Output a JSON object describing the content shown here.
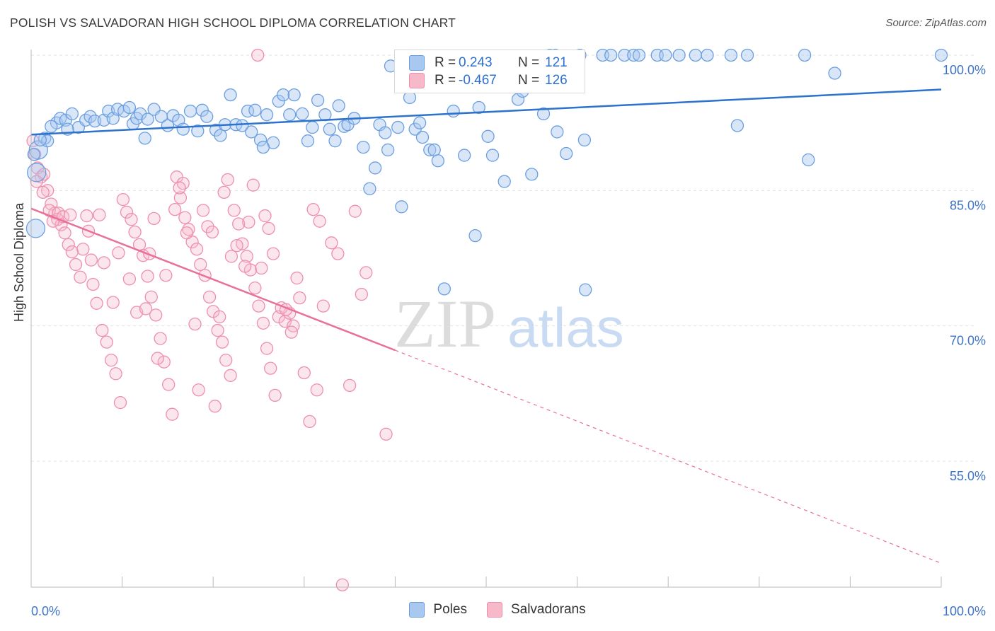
{
  "header": {
    "title": "POLISH VS SALVADORAN HIGH SCHOOL DIPLOMA CORRELATION CHART",
    "source": "Source: ZipAtlas.com"
  },
  "watermark": {
    "zip": "ZIP",
    "atlas": "atlas"
  },
  "colors": {
    "poles_fill": "#a9c8f0",
    "poles_stroke": "#6b9fe0",
    "poles_line": "#2d72cc",
    "salv_fill": "#f7b8ca",
    "salv_stroke": "#ee8fae",
    "salv_line": "#e8709a",
    "tick_label": "#3f74c8",
    "grid": "#e3e3e3"
  },
  "legend_box": {
    "rows": [
      {
        "r_label": "R =",
        "r_value": "0.243",
        "n_label": "N =",
        "n_value": "121",
        "swatch": "poles"
      },
      {
        "r_label": "R =",
        "r_value": "-0.467",
        "n_label": "N =",
        "n_value": "126",
        "swatch": "salvadorans"
      }
    ]
  },
  "bottom_legend": [
    {
      "label": "Poles",
      "swatch": "poles"
    },
    {
      "label": "Salvadorans",
      "swatch": "salvadorans"
    }
  ],
  "chart_data": {
    "type": "scatter",
    "title": "POLISH VS SALVADORAN HIGH SCHOOL DIPLOMA CORRELATION CHART",
    "xlabel": "",
    "ylabel": "High School Diploma",
    "xlim": [
      0,
      100
    ],
    "ylim": [
      38,
      100
    ],
    "x_tick_labels": [
      "0.0%",
      "100.0%"
    ],
    "y_ticks": [
      55,
      70,
      85,
      100
    ],
    "y_tick_labels": [
      "55.0%",
      "70.0%",
      "85.0%",
      "100.0%"
    ],
    "grid": true,
    "legend_position": "top-center",
    "series": [
      {
        "name": "Poles",
        "r": 0.243,
        "n": 121,
        "trend": {
          "x": [
            0,
            100
          ],
          "y": [
            91.2,
            96.2
          ]
        },
        "points": [
          [
            0.5,
            80.8
          ],
          [
            0.8,
            89.5
          ],
          [
            0.6,
            87.0
          ],
          [
            1.5,
            90.8
          ],
          [
            1.8,
            90.5
          ],
          [
            2.8,
            92.5
          ],
          [
            3.2,
            93.0
          ],
          [
            3.8,
            92.8
          ],
          [
            4.5,
            93.5
          ],
          [
            5.2,
            92.0
          ],
          [
            6.0,
            92.8
          ],
          [
            6.5,
            93.2
          ],
          [
            7.0,
            92.7
          ],
          [
            8.0,
            92.8
          ],
          [
            8.5,
            93.8
          ],
          [
            9.0,
            93.0
          ],
          [
            9.5,
            94.0
          ],
          [
            10.2,
            93.8
          ],
          [
            10.8,
            94.2
          ],
          [
            11.2,
            92.4
          ],
          [
            11.6,
            93.0
          ],
          [
            12.0,
            93.5
          ],
          [
            12.8,
            92.9
          ],
          [
            13.5,
            94.0
          ],
          [
            14.3,
            93.2
          ],
          [
            15.0,
            92.2
          ],
          [
            15.6,
            93.3
          ],
          [
            16.2,
            92.8
          ],
          [
            16.7,
            91.8
          ],
          [
            17.5,
            93.8
          ],
          [
            18.3,
            91.6
          ],
          [
            18.8,
            93.9
          ],
          [
            19.3,
            93.2
          ],
          [
            20.3,
            91.7
          ],
          [
            20.8,
            91.1
          ],
          [
            21.3,
            92.3
          ],
          [
            21.9,
            95.6
          ],
          [
            22.5,
            92.3
          ],
          [
            23.2,
            92.2
          ],
          [
            23.8,
            93.8
          ],
          [
            24.2,
            91.5
          ],
          [
            24.6,
            93.9
          ],
          [
            25.2,
            90.6
          ],
          [
            25.9,
            93.4
          ],
          [
            26.6,
            90.3
          ],
          [
            27.2,
            94.9
          ],
          [
            27.7,
            95.6
          ],
          [
            28.4,
            93.4
          ],
          [
            28.9,
            95.6
          ],
          [
            29.8,
            93.5
          ],
          [
            30.4,
            90.5
          ],
          [
            30.9,
            92.0
          ],
          [
            31.5,
            95.0
          ],
          [
            32.3,
            93.4
          ],
          [
            32.8,
            91.8
          ],
          [
            33.4,
            90.5
          ],
          [
            33.8,
            94.4
          ],
          [
            34.4,
            92.1
          ],
          [
            34.8,
            92.3
          ],
          [
            35.5,
            93.0
          ],
          [
            36.5,
            89.8
          ],
          [
            37.2,
            85.2
          ],
          [
            37.8,
            87.5
          ],
          [
            38.3,
            92.3
          ],
          [
            39.2,
            89.5
          ],
          [
            39.5,
            98.8
          ],
          [
            40.3,
            92.0
          ],
          [
            40.7,
            83.2
          ],
          [
            41.6,
            95.3
          ],
          [
            42.2,
            91.8
          ],
          [
            42.7,
            92.5
          ],
          [
            43.1,
            98.0
          ],
          [
            43.8,
            89.5
          ],
          [
            44.3,
            89.5
          ],
          [
            44.7,
            88.3
          ],
          [
            45.4,
            74.1
          ],
          [
            46.4,
            93.8
          ],
          [
            46.7,
            99.0
          ],
          [
            47.6,
            88.9
          ],
          [
            48.8,
            80.0
          ],
          [
            49.2,
            94.2
          ],
          [
            50.2,
            91.0
          ],
          [
            50.7,
            88.9
          ],
          [
            52.0,
            86.0
          ],
          [
            53.5,
            95.1
          ],
          [
            54.0,
            96.0
          ],
          [
            55.0,
            86.8
          ],
          [
            56.3,
            93.5
          ],
          [
            57.0,
            100.0
          ],
          [
            57.6,
            100.0
          ],
          [
            57.8,
            91.5
          ],
          [
            58.8,
            89.1
          ],
          [
            60.8,
            90.6
          ],
          [
            60.3,
            100.0
          ],
          [
            60.9,
            74.0
          ],
          [
            62.8,
            100.0
          ],
          [
            63.7,
            100.0
          ],
          [
            65.2,
            100.0
          ],
          [
            66.2,
            100.0
          ],
          [
            66.8,
            100.0
          ],
          [
            68.8,
            100.0
          ],
          [
            69.7,
            100.0
          ],
          [
            71.2,
            100.0
          ],
          [
            73.0,
            100.0
          ],
          [
            74.3,
            100.0
          ],
          [
            76.9,
            100.0
          ],
          [
            77.6,
            92.2
          ],
          [
            78.7,
            100.0
          ],
          [
            85.0,
            100.0
          ],
          [
            88.3,
            98.0
          ],
          [
            100.0,
            100.0
          ],
          [
            0.3,
            89.0
          ],
          [
            1.0,
            90.6
          ],
          [
            2.2,
            92.1
          ],
          [
            4.0,
            91.8
          ],
          [
            25.5,
            89.8
          ],
          [
            38.9,
            91.4
          ],
          [
            43.0,
            90.9
          ],
          [
            12.5,
            90.8
          ],
          [
            85.4,
            88.4
          ]
        ]
      },
      {
        "name": "Salvadorans",
        "r": -0.467,
        "n": 126,
        "trend": {
          "x": [
            0,
            40
          ],
          "y": [
            83.0,
            67.3
          ]
        },
        "trend_extension": {
          "x": [
            40,
            100
          ],
          "y": [
            67.3,
            43.7
          ]
        },
        "points": [
          [
            0.2,
            90.5
          ],
          [
            0.4,
            89.0
          ],
          [
            0.7,
            87.5
          ],
          [
            1.1,
            86.5
          ],
          [
            1.4,
            86.8
          ],
          [
            1.8,
            85.0
          ],
          [
            2.2,
            83.5
          ],
          [
            2.6,
            82.5
          ],
          [
            2.9,
            81.8
          ],
          [
            3.3,
            81.2
          ],
          [
            3.7,
            80.3
          ],
          [
            4.1,
            79.0
          ],
          [
            4.5,
            78.2
          ],
          [
            4.9,
            76.8
          ],
          [
            5.4,
            75.4
          ],
          [
            6.1,
            82.2
          ],
          [
            6.3,
            80.5
          ],
          [
            6.8,
            74.6
          ],
          [
            7.2,
            72.5
          ],
          [
            7.8,
            69.5
          ],
          [
            8.3,
            68.2
          ],
          [
            8.8,
            66.2
          ],
          [
            9.3,
            64.7
          ],
          [
            9.8,
            61.5
          ],
          [
            10.1,
            84.0
          ],
          [
            10.5,
            82.6
          ],
          [
            11.0,
            81.8
          ],
          [
            11.4,
            80.4
          ],
          [
            11.9,
            79.0
          ],
          [
            12.3,
            77.8
          ],
          [
            12.8,
            75.5
          ],
          [
            13.2,
            73.2
          ],
          [
            13.7,
            71.2
          ],
          [
            14.2,
            68.6
          ],
          [
            14.6,
            66.0
          ],
          [
            15.1,
            63.5
          ],
          [
            15.5,
            60.2
          ],
          [
            16.0,
            86.5
          ],
          [
            16.4,
            84.2
          ],
          [
            16.9,
            82.0
          ],
          [
            17.3,
            80.7
          ],
          [
            17.7,
            79.3
          ],
          [
            18.2,
            78.5
          ],
          [
            18.6,
            76.8
          ],
          [
            19.1,
            75.6
          ],
          [
            19.6,
            73.2
          ],
          [
            20.0,
            71.6
          ],
          [
            20.5,
            69.5
          ],
          [
            21.0,
            68.2
          ],
          [
            21.4,
            66.2
          ],
          [
            21.9,
            64.5
          ],
          [
            22.3,
            82.8
          ],
          [
            22.8,
            81.3
          ],
          [
            23.2,
            79.1
          ],
          [
            23.7,
            77.7
          ],
          [
            24.1,
            76.2
          ],
          [
            24.6,
            74.2
          ],
          [
            25.0,
            72.2
          ],
          [
            25.5,
            70.3
          ],
          [
            25.9,
            67.5
          ],
          [
            26.3,
            65.3
          ],
          [
            26.8,
            62.3
          ],
          [
            27.2,
            71.0
          ],
          [
            27.9,
            70.5
          ],
          [
            28.4,
            71.4
          ],
          [
            28.8,
            70.0
          ],
          [
            29.5,
            73.1
          ],
          [
            30.6,
            59.4
          ],
          [
            31.4,
            62.9
          ],
          [
            32.1,
            72.2
          ],
          [
            33.0,
            79.2
          ],
          [
            34.2,
            41.3
          ],
          [
            35.0,
            63.4
          ],
          [
            36.3,
            73.5
          ],
          [
            36.8,
            75.9
          ],
          [
            39.0,
            58.0
          ],
          [
            0.6,
            86.0
          ],
          [
            1.3,
            84.8
          ],
          [
            2.0,
            82.8
          ],
          [
            2.4,
            81.6
          ],
          [
            3.0,
            82.5
          ],
          [
            3.5,
            82.1
          ],
          [
            4.3,
            82.3
          ],
          [
            5.7,
            78.5
          ],
          [
            6.6,
            77.3
          ],
          [
            7.5,
            82.3
          ],
          [
            8.0,
            77.0
          ],
          [
            9.0,
            72.6
          ],
          [
            9.6,
            78.1
          ],
          [
            10.8,
            75.2
          ],
          [
            11.6,
            71.5
          ],
          [
            12.6,
            71.9
          ],
          [
            13.0,
            78.0
          ],
          [
            13.5,
            81.9
          ],
          [
            14.8,
            75.6
          ],
          [
            15.8,
            82.9
          ],
          [
            16.7,
            85.8
          ],
          [
            17.1,
            80.3
          ],
          [
            18.0,
            70.2
          ],
          [
            18.9,
            82.8
          ],
          [
            19.4,
            81.0
          ],
          [
            19.9,
            80.4
          ],
          [
            20.7,
            71.0
          ],
          [
            21.2,
            84.8
          ],
          [
            22.0,
            77.7
          ],
          [
            22.6,
            78.9
          ],
          [
            23.5,
            76.6
          ],
          [
            24.4,
            85.6
          ],
          [
            25.3,
            76.4
          ],
          [
            25.7,
            82.2
          ],
          [
            26.1,
            80.8
          ],
          [
            26.6,
            78.0
          ],
          [
            27.5,
            72.0
          ],
          [
            28.0,
            71.8
          ],
          [
            28.6,
            69.3
          ],
          [
            29.2,
            75.3
          ],
          [
            30.0,
            64.8
          ],
          [
            31.0,
            82.9
          ],
          [
            31.7,
            81.6
          ],
          [
            33.7,
            78.0
          ],
          [
            35.6,
            82.7
          ],
          [
            13.9,
            66.4
          ],
          [
            16.3,
            85.3
          ],
          [
            18.4,
            62.9
          ],
          [
            21.6,
            86.2
          ],
          [
            24.9,
            100.0
          ],
          [
            23.9,
            81.5
          ],
          [
            20.2,
            61.1
          ]
        ]
      }
    ]
  }
}
